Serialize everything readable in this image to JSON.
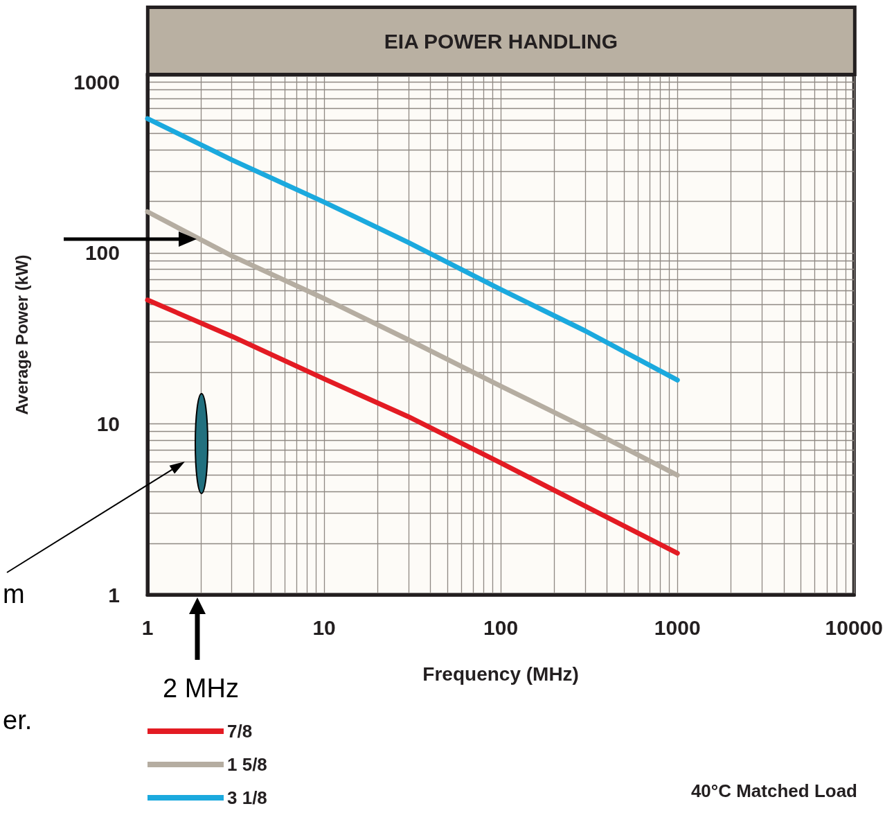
{
  "chart_data": {
    "type": "line",
    "title": "EIA POWER HANDLING",
    "xlabel": "Frequency (MHz)",
    "ylabel": "Average Power (kW)",
    "x": [
      1,
      3,
      10,
      30,
      100,
      300,
      1000
    ],
    "series": [
      {
        "name": "7/8",
        "color": "#e31b23",
        "values": [
          53,
          32.5,
          18.3,
          11,
          5.9,
          3.3,
          1.75
        ]
      },
      {
        "name": "1 5/8",
        "color": "#b5ada1",
        "values": [
          174,
          96,
          54,
          31,
          16.6,
          9.5,
          5.0
        ]
      },
      {
        "name": "3 1/8",
        "color": "#1ba9de",
        "values": [
          610,
          350,
          198,
          115,
          61,
          35,
          18
        ]
      }
    ],
    "xlim": [
      1,
      10000
    ],
    "ylim": [
      1,
      1100
    ],
    "xticks": [
      1,
      10,
      100,
      1000,
      10000
    ],
    "yticks": [
      1,
      10,
      100,
      1000
    ],
    "log": "xy",
    "grid": true,
    "legend": "bottom left",
    "marker": "none",
    "line_style": "solid",
    "annotations": [
      "m",
      "er.",
      "2 MHz",
      "40°C Matched Load"
    ]
  }
}
